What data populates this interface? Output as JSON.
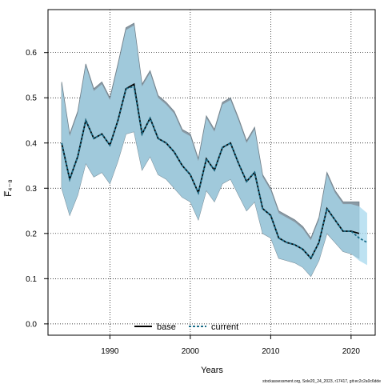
{
  "chart_data": {
    "type": "line",
    "xlabel": "Years",
    "ylabel": "F̅₄₋₈",
    "xlim": [
      1982.3,
      2023.0
    ],
    "ylim": [
      -0.025,
      0.695
    ],
    "xticks": [
      1990,
      2000,
      2010,
      2020
    ],
    "yticks": [
      0.0,
      0.1,
      0.2,
      0.3,
      0.4,
      0.5,
      0.6
    ],
    "ytick_labels": [
      "0.0",
      "0.1",
      "0.2",
      "0.3",
      "0.4",
      "0.5",
      "0.6"
    ],
    "grid": true,
    "legend_position": "bottom-center",
    "footer": "stockassessment.org, Sole20_24_2023, r17417, git:ec2c2a0c6dde",
    "colors": {
      "base_band": "#8a9aa5",
      "current_band": "#a7d8ee",
      "overlap_band": "#a0c4d4",
      "base_line": "#000000",
      "current_line": "#1b6e8a"
    },
    "series": [
      {
        "name": "base",
        "style": "solid",
        "x": [
          1984,
          1985,
          1986,
          1987,
          1988,
          1989,
          1990,
          1991,
          1992,
          1993,
          1994,
          1995,
          1996,
          1997,
          1998,
          1999,
          2000,
          2001,
          2002,
          2003,
          2004,
          2005,
          2006,
          2007,
          2008,
          2009,
          2010,
          2011,
          2012,
          2013,
          2014,
          2015,
          2016,
          2017,
          2018,
          2019,
          2020,
          2021
        ],
        "values": [
          0.4,
          0.32,
          0.37,
          0.45,
          0.41,
          0.42,
          0.395,
          0.45,
          0.52,
          0.53,
          0.42,
          0.455,
          0.41,
          0.4,
          0.38,
          0.35,
          0.33,
          0.29,
          0.365,
          0.34,
          0.39,
          0.4,
          0.355,
          0.315,
          0.335,
          0.255,
          0.24,
          0.19,
          0.18,
          0.175,
          0.165,
          0.145,
          0.18,
          0.255,
          0.23,
          0.205,
          0.205,
          0.2
        ],
        "upper": [
          0.535,
          0.42,
          0.47,
          0.575,
          0.52,
          0.535,
          0.5,
          0.575,
          0.655,
          0.665,
          0.53,
          0.56,
          0.505,
          0.49,
          0.47,
          0.43,
          0.42,
          0.365,
          0.46,
          0.43,
          0.49,
          0.5,
          0.455,
          0.405,
          0.435,
          0.33,
          0.3,
          0.25,
          0.24,
          0.23,
          0.215,
          0.19,
          0.235,
          0.335,
          0.295,
          0.27,
          0.27,
          0.27
        ],
        "lower": [
          0.3,
          0.24,
          0.285,
          0.355,
          0.325,
          0.335,
          0.31,
          0.36,
          0.42,
          0.425,
          0.34,
          0.37,
          0.33,
          0.32,
          0.3,
          0.28,
          0.27,
          0.23,
          0.295,
          0.27,
          0.31,
          0.32,
          0.285,
          0.25,
          0.27,
          0.2,
          0.19,
          0.145,
          0.14,
          0.135,
          0.125,
          0.105,
          0.14,
          0.2,
          0.18,
          0.16,
          0.155,
          0.145
        ]
      },
      {
        "name": "current",
        "style": "dashed",
        "x": [
          1984,
          1985,
          1986,
          1987,
          1988,
          1989,
          1990,
          1991,
          1992,
          1993,
          1994,
          1995,
          1996,
          1997,
          1998,
          1999,
          2000,
          2001,
          2002,
          2003,
          2004,
          2005,
          2006,
          2007,
          2008,
          2009,
          2010,
          2011,
          2012,
          2013,
          2014,
          2015,
          2016,
          2017,
          2018,
          2019,
          2020,
          2021,
          2022
        ],
        "values": [
          0.4,
          0.32,
          0.37,
          0.45,
          0.41,
          0.42,
          0.395,
          0.45,
          0.52,
          0.525,
          0.42,
          0.455,
          0.41,
          0.4,
          0.38,
          0.35,
          0.33,
          0.29,
          0.365,
          0.34,
          0.39,
          0.4,
          0.355,
          0.315,
          0.335,
          0.255,
          0.24,
          0.19,
          0.18,
          0.175,
          0.165,
          0.145,
          0.18,
          0.255,
          0.23,
          0.205,
          0.205,
          0.19,
          0.18
        ],
        "upper": [
          0.53,
          0.415,
          0.465,
          0.57,
          0.515,
          0.53,
          0.495,
          0.57,
          0.65,
          0.66,
          0.525,
          0.555,
          0.5,
          0.485,
          0.465,
          0.425,
          0.415,
          0.36,
          0.455,
          0.425,
          0.485,
          0.495,
          0.45,
          0.4,
          0.43,
          0.325,
          0.295,
          0.245,
          0.235,
          0.225,
          0.21,
          0.185,
          0.23,
          0.33,
          0.29,
          0.265,
          0.265,
          0.26,
          0.245
        ],
        "lower": [
          0.3,
          0.24,
          0.285,
          0.355,
          0.325,
          0.335,
          0.31,
          0.36,
          0.42,
          0.425,
          0.34,
          0.37,
          0.33,
          0.32,
          0.3,
          0.28,
          0.27,
          0.23,
          0.295,
          0.27,
          0.31,
          0.32,
          0.285,
          0.25,
          0.27,
          0.2,
          0.19,
          0.145,
          0.14,
          0.135,
          0.125,
          0.105,
          0.14,
          0.2,
          0.18,
          0.16,
          0.155,
          0.14,
          0.13
        ]
      }
    ]
  }
}
